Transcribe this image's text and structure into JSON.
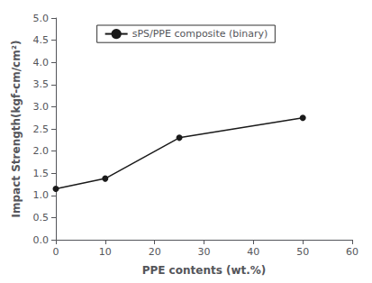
{
  "chart_data": {
    "type": "line",
    "x": [
      0,
      10,
      25,
      50
    ],
    "series": [
      {
        "name": "sPS/PPE composite (binary)",
        "color": "#1a1a1a",
        "marker": "circle",
        "values": [
          1.15,
          1.38,
          2.3,
          2.75
        ]
      }
    ],
    "xlabel": "PPE contents (wt.%)",
    "ylabel": "Impact Strength(kgf-cm/cm²)",
    "xlim": [
      0,
      60
    ],
    "xticks": [
      0,
      10,
      20,
      30,
      40,
      50,
      60
    ],
    "ylim": [
      0.0,
      5.0
    ],
    "yticks": [
      {
        "value": 0.0,
        "label": "0.0"
      },
      0.5,
      {
        "value": 1.0,
        "label": "1.0"
      },
      1.5,
      {
        "value": 2.0,
        "label": "2.0"
      },
      2.5,
      {
        "value": 3.0,
        "label": "3.0"
      },
      3.5,
      {
        "value": 4.0,
        "label": "4.0"
      },
      4.5,
      {
        "value": 5.0,
        "label": "5.0"
      }
    ],
    "grid": false,
    "legend": "upper center"
  }
}
